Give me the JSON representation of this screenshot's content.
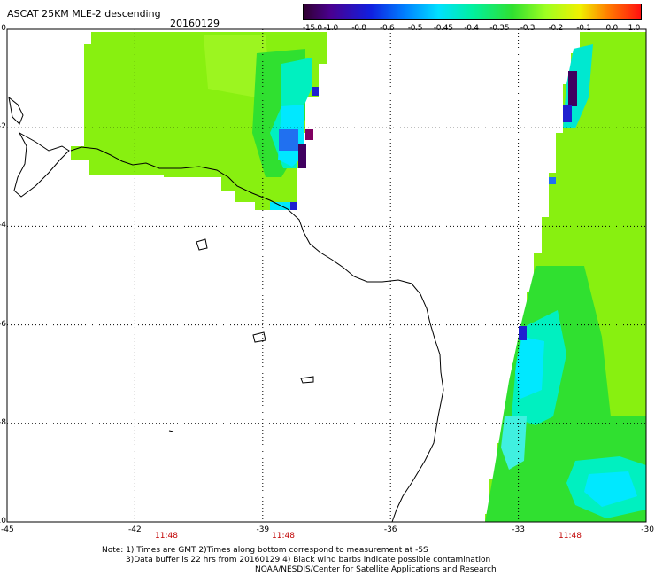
{
  "header": {
    "title": "ASCAT 25KM MLE-2 descending",
    "date": "20160129"
  },
  "colorbar": {
    "ticks": [
      "-15.0",
      "-1.0",
      "-0.8",
      "-0.6",
      "-0.5",
      "-0.45",
      "-0.4",
      "-0.35",
      "-0.3",
      "-0.2",
      "-0.1",
      "0.0",
      "1.0"
    ]
  },
  "axes": {
    "y_labels": [
      "0",
      "-2",
      "-4",
      "-6",
      "-8",
      "-10"
    ],
    "x_labels": [
      "-45",
      "-42",
      "-39",
      "-36",
      "-33",
      "-30"
    ],
    "time_labels": [
      "11:48",
      "11:48",
      "11:48"
    ]
  },
  "notes": {
    "line1": "Note: 1) Times are GMT 2)Times along bottom correspond to measurement at -5S",
    "line2": "3)Data buffer is 22 hrs from 20160129 4) Black wind barbs indicate possible contamination",
    "line3": "NOAA/NESDIS/Center for Satellite Applications and Research"
  },
  "colors": {
    "grid": "#000000",
    "time_label": "#c00000",
    "swath_base": "#88f010",
    "swath_green": "#30e030",
    "swath_cyan": "#00e8ff",
    "swath_blue": "#2020d0",
    "swath_purple": "#400060"
  }
}
